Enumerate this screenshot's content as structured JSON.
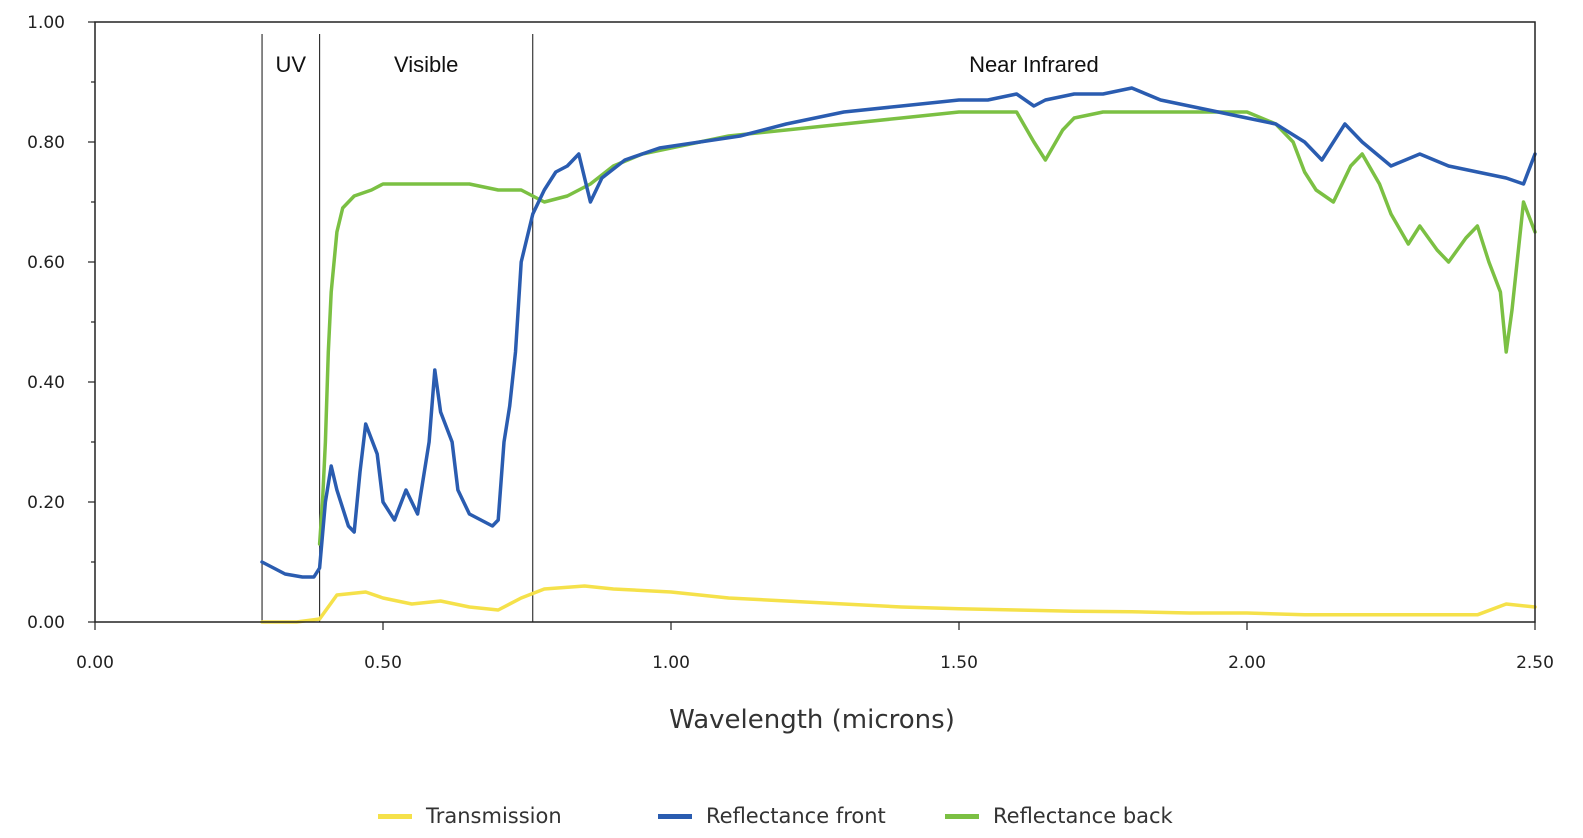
{
  "chart_data": {
    "type": "line",
    "xlabel": "Wavelength (microns)",
    "ylabel": "",
    "xlim": [
      0,
      2.5
    ],
    "ylim": [
      0,
      1.0
    ],
    "x_ticks": [
      "0.00",
      "0.50",
      "1.00",
      "1.50",
      "2.00",
      "2.50"
    ],
    "y_ticks": [
      "0.00",
      "0.20",
      "0.40",
      "0.60",
      "0.80",
      "1.00"
    ],
    "grid": false,
    "legend_position": "bottom",
    "regions": [
      {
        "label": "UV",
        "x_start": 0.29,
        "x_end": 0.39
      },
      {
        "label": "Visible",
        "x_start": 0.39,
        "x_end": 0.76
      },
      {
        "label": "Near Infrared",
        "x_start": 0.76,
        "x_end": 2.5
      }
    ],
    "series": [
      {
        "name": "Transmission",
        "color": "#F5E14A",
        "x": [
          0.29,
          0.35,
          0.39,
          0.42,
          0.47,
          0.5,
          0.55,
          0.6,
          0.65,
          0.7,
          0.74,
          0.78,
          0.85,
          0.9,
          1.0,
          1.1,
          1.2,
          1.3,
          1.4,
          1.5,
          1.6,
          1.7,
          1.8,
          1.9,
          2.0,
          2.1,
          2.2,
          2.3,
          2.4,
          2.45,
          2.5
        ],
        "y": [
          0.0,
          0.0,
          0.005,
          0.045,
          0.05,
          0.04,
          0.03,
          0.035,
          0.025,
          0.02,
          0.04,
          0.055,
          0.06,
          0.055,
          0.05,
          0.04,
          0.035,
          0.03,
          0.025,
          0.022,
          0.02,
          0.018,
          0.017,
          0.015,
          0.015,
          0.012,
          0.012,
          0.012,
          0.012,
          0.03,
          0.025
        ]
      },
      {
        "name": "Reflectance front",
        "color": "#2A5CB0",
        "x": [
          0.29,
          0.31,
          0.33,
          0.36,
          0.38,
          0.39,
          0.4,
          0.41,
          0.42,
          0.44,
          0.45,
          0.46,
          0.47,
          0.49,
          0.5,
          0.52,
          0.54,
          0.56,
          0.58,
          0.59,
          0.6,
          0.62,
          0.63,
          0.65,
          0.69,
          0.7,
          0.71,
          0.72,
          0.73,
          0.74,
          0.75,
          0.76,
          0.78,
          0.8,
          0.82,
          0.84,
          0.86,
          0.88,
          0.92,
          0.98,
          1.05,
          1.12,
          1.2,
          1.3,
          1.4,
          1.5,
          1.55,
          1.6,
          1.63,
          1.65,
          1.7,
          1.75,
          1.8,
          1.85,
          1.9,
          1.95,
          2.0,
          2.05,
          2.1,
          2.13,
          2.17,
          2.2,
          2.25,
          2.3,
          2.35,
          2.4,
          2.45,
          2.48,
          2.5
        ],
        "y": [
          0.1,
          0.09,
          0.08,
          0.075,
          0.075,
          0.09,
          0.2,
          0.26,
          0.22,
          0.16,
          0.15,
          0.25,
          0.33,
          0.28,
          0.2,
          0.17,
          0.22,
          0.18,
          0.3,
          0.42,
          0.35,
          0.3,
          0.22,
          0.18,
          0.16,
          0.17,
          0.3,
          0.36,
          0.45,
          0.6,
          0.64,
          0.68,
          0.72,
          0.75,
          0.76,
          0.78,
          0.7,
          0.74,
          0.77,
          0.79,
          0.8,
          0.81,
          0.83,
          0.85,
          0.86,
          0.87,
          0.87,
          0.88,
          0.86,
          0.87,
          0.88,
          0.88,
          0.89,
          0.87,
          0.86,
          0.85,
          0.84,
          0.83,
          0.8,
          0.77,
          0.83,
          0.8,
          0.76,
          0.78,
          0.76,
          0.75,
          0.74,
          0.73,
          0.78
        ]
      },
      {
        "name": "Reflectance back",
        "color": "#7BC043",
        "x": [
          0.39,
          0.395,
          0.4,
          0.405,
          0.41,
          0.42,
          0.43,
          0.45,
          0.48,
          0.5,
          0.55,
          0.6,
          0.65,
          0.7,
          0.74,
          0.76,
          0.78,
          0.82,
          0.86,
          0.9,
          0.95,
          1.0,
          1.05,
          1.1,
          1.2,
          1.3,
          1.4,
          1.5,
          1.6,
          1.63,
          1.65,
          1.68,
          1.7,
          1.75,
          1.8,
          1.85,
          1.9,
          1.95,
          2.0,
          2.05,
          2.08,
          2.1,
          2.12,
          2.15,
          2.18,
          2.2,
          2.23,
          2.25,
          2.28,
          2.3,
          2.33,
          2.35,
          2.38,
          2.4,
          2.42,
          2.44,
          2.45,
          2.46,
          2.48,
          2.5
        ],
        "y": [
          0.13,
          0.2,
          0.3,
          0.45,
          0.55,
          0.65,
          0.69,
          0.71,
          0.72,
          0.73,
          0.73,
          0.73,
          0.73,
          0.72,
          0.72,
          0.71,
          0.7,
          0.71,
          0.73,
          0.76,
          0.78,
          0.79,
          0.8,
          0.81,
          0.82,
          0.83,
          0.84,
          0.85,
          0.85,
          0.8,
          0.77,
          0.82,
          0.84,
          0.85,
          0.85,
          0.85,
          0.85,
          0.85,
          0.85,
          0.83,
          0.8,
          0.75,
          0.72,
          0.7,
          0.76,
          0.78,
          0.73,
          0.68,
          0.63,
          0.66,
          0.62,
          0.6,
          0.64,
          0.66,
          0.6,
          0.55,
          0.45,
          0.52,
          0.7,
          0.65
        ]
      }
    ]
  }
}
